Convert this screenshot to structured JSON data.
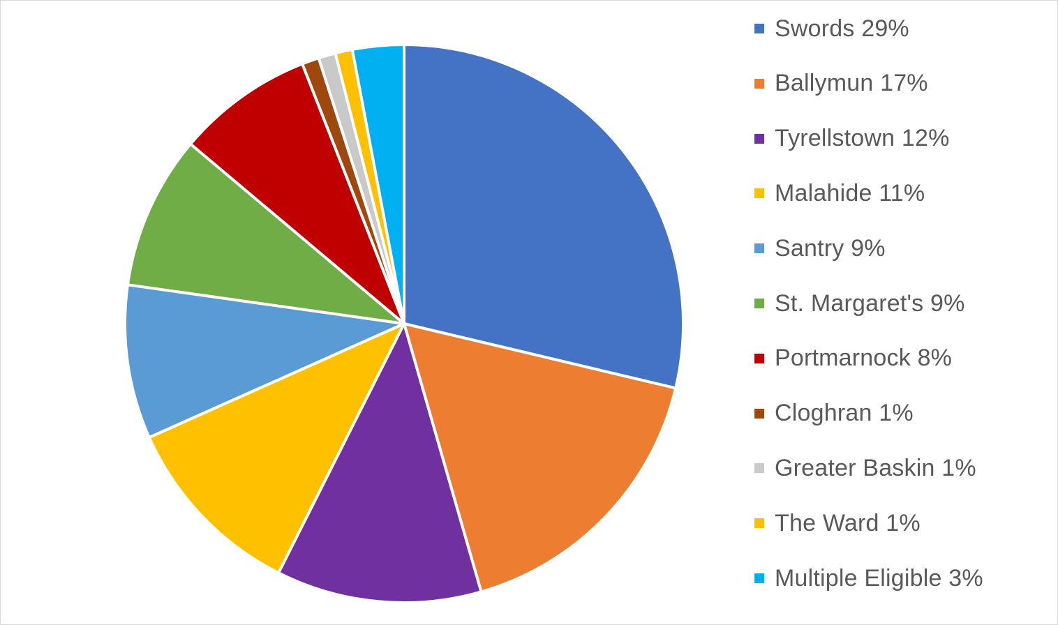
{
  "chart_data": {
    "type": "pie",
    "title": "",
    "legend_position": "right",
    "start_angle_deg": 0,
    "direction": "clockwise",
    "slices": [
      {
        "label": "Swords 29%",
        "category": "Swords",
        "value": 29,
        "color": "#4472C4"
      },
      {
        "label": "Ballymun 17%",
        "category": "Ballymun",
        "value": 17,
        "color": "#ED7D31"
      },
      {
        "label": "Tyrellstown 12%",
        "category": "Tyrellstown",
        "value": 12,
        "color": "#7030A0"
      },
      {
        "label": "Malahide 11%",
        "category": "Malahide",
        "value": 11,
        "color": "#FFC000"
      },
      {
        "label": "Santry 9%",
        "category": "Santry",
        "value": 9,
        "color": "#5B9BD5"
      },
      {
        "label": "St. Margaret's 9%",
        "category": "St. Margaret's",
        "value": 9,
        "color": "#70AD47"
      },
      {
        "label": "Portmarnock 8%",
        "category": "Portmarnock",
        "value": 8,
        "color": "#C00000"
      },
      {
        "label": "Cloghran 1%",
        "category": "Cloghran",
        "value": 1,
        "color": "#9E480E"
      },
      {
        "label": "Greater Baskin 1%",
        "category": "Greater Baskin",
        "value": 1,
        "color": "#C9C9C9"
      },
      {
        "label": "The Ward 1%",
        "category": "The Ward",
        "value": 1,
        "color": "#FFC000"
      },
      {
        "label": "Multiple Eligible 3%",
        "category": "Multiple Eligible",
        "value": 3,
        "color": "#00B0F0"
      }
    ]
  }
}
